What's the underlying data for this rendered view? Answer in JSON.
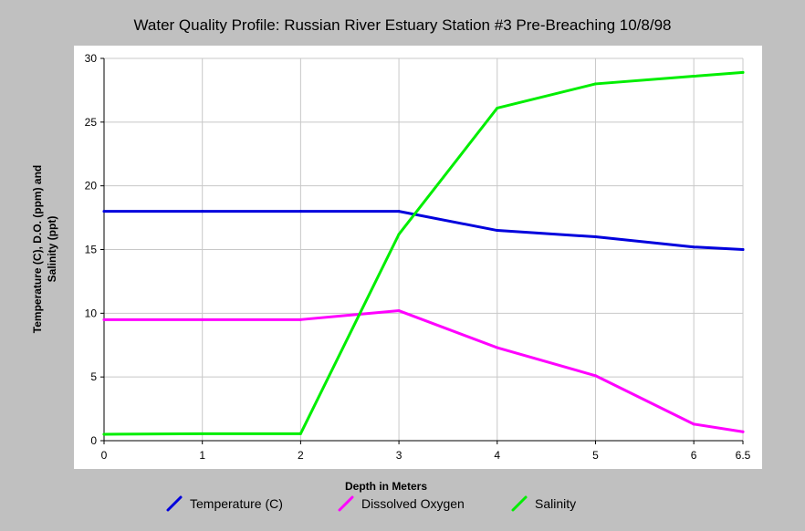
{
  "chart_data": {
    "type": "line",
    "title": "Water Quality Profile: Russian River Estuary Station #3 Pre-Breaching 10/8/98",
    "xlabel": "Depth in Meters",
    "ylabel_lines": [
      "Temperature (C), D.O. (ppm) and",
      "Salinity (ppt)"
    ],
    "xlim": [
      0,
      6.5
    ],
    "ylim": [
      0,
      30
    ],
    "x_ticks": [
      0,
      1,
      2,
      3,
      4,
      5,
      6,
      6.5
    ],
    "x_tick_labels": [
      "0",
      "1",
      "2",
      "3",
      "4",
      "5",
      "6",
      "6.5"
    ],
    "y_ticks": [
      0,
      5,
      10,
      15,
      20,
      25,
      30
    ],
    "y_tick_labels": [
      "0",
      "5",
      "10",
      "15",
      "20",
      "25",
      "30"
    ],
    "grid": true,
    "legend_position": "bottom",
    "series": [
      {
        "name": "Temperature (C)",
        "color": "#0000dd",
        "points": [
          [
            0,
            18.0
          ],
          [
            1,
            18.0
          ],
          [
            2,
            18.0
          ],
          [
            3,
            18.0
          ],
          [
            4,
            16.5
          ],
          [
            5,
            16.0
          ],
          [
            6,
            15.2
          ],
          [
            6.5,
            15.0
          ]
        ]
      },
      {
        "name": "Dissolved Oxygen",
        "color": "#ff00ff",
        "points": [
          [
            0,
            9.5
          ],
          [
            1,
            9.5
          ],
          [
            2,
            9.5
          ],
          [
            3,
            10.2
          ],
          [
            4,
            7.3
          ],
          [
            5,
            5.1
          ],
          [
            6,
            1.3
          ],
          [
            6.5,
            0.7
          ]
        ]
      },
      {
        "name": "Salinity",
        "color": "#00ee00",
        "points": [
          [
            0,
            0.5
          ],
          [
            1,
            0.55
          ],
          [
            2,
            0.55
          ],
          [
            3,
            16.2
          ],
          [
            4,
            26.1
          ],
          [
            5,
            28.0
          ],
          [
            6,
            28.6
          ],
          [
            6.5,
            28.9
          ]
        ]
      }
    ]
  }
}
